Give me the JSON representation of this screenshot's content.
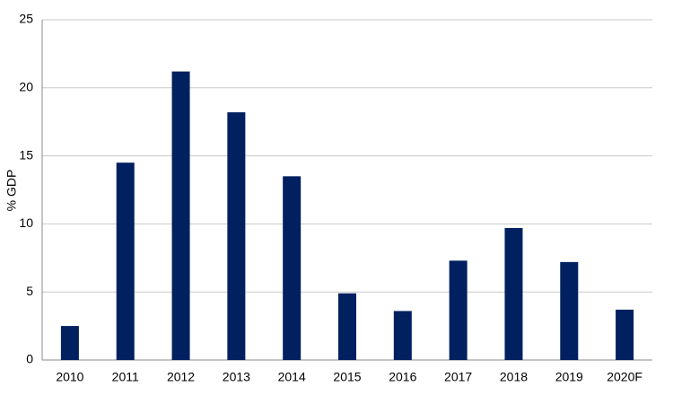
{
  "chart_data": {
    "type": "bar",
    "y_label": "% GDP",
    "categories": [
      "2010",
      "2011",
      "2012",
      "2013",
      "2014",
      "2015",
      "2016",
      "2017",
      "2018",
      "2019",
      "2020F"
    ],
    "values": [
      2.5,
      14.5,
      21.2,
      18.2,
      13.5,
      4.9,
      3.6,
      7.3,
      9.7,
      7.2,
      3.7
    ],
    "color": "#002060",
    "ylim": [
      0,
      25
    ],
    "yticks": [
      0,
      5,
      10,
      15,
      20,
      25
    ],
    "grid": true
  }
}
